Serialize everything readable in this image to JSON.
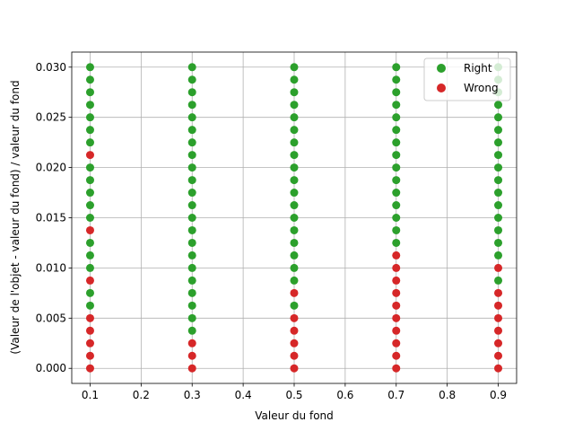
{
  "chart_data": {
    "type": "scatter",
    "xlabel": "Valeur du fond",
    "ylabel": "(Valeur de l'objet - valeur du fond) / valeur du fond",
    "xlim": [
      0.064,
      0.936
    ],
    "ylim": [
      -0.0015,
      0.0315
    ],
    "xticks": [
      "0.1",
      "0.2",
      "0.3",
      "0.4",
      "0.5",
      "0.6",
      "0.7",
      "0.8",
      "0.9"
    ],
    "yticks": [
      "0.000",
      "0.005",
      "0.010",
      "0.015",
      "0.020",
      "0.025",
      "0.030"
    ],
    "grid": true,
    "legend_position": "top-right",
    "colors": {
      "right": "#2ca02c",
      "wrong": "#d62728"
    },
    "series": [
      {
        "name": "Right",
        "points": [
          [
            0.1,
            0.00625
          ],
          [
            0.1,
            0.0075
          ],
          [
            0.1,
            0.01
          ],
          [
            0.1,
            0.01125
          ],
          [
            0.1,
            0.0125
          ],
          [
            0.1,
            0.015
          ],
          [
            0.1,
            0.01625
          ],
          [
            0.1,
            0.0175
          ],
          [
            0.1,
            0.01875
          ],
          [
            0.1,
            0.02
          ],
          [
            0.1,
            0.0225
          ],
          [
            0.1,
            0.02375
          ],
          [
            0.1,
            0.025
          ],
          [
            0.1,
            0.02625
          ],
          [
            0.1,
            0.0275
          ],
          [
            0.1,
            0.02875
          ],
          [
            0.1,
            0.03
          ],
          [
            0.3,
            0.00375
          ],
          [
            0.3,
            0.005
          ],
          [
            0.3,
            0.00625
          ],
          [
            0.3,
            0.0075
          ],
          [
            0.3,
            0.00875
          ],
          [
            0.3,
            0.01
          ],
          [
            0.3,
            0.01125
          ],
          [
            0.3,
            0.0125
          ],
          [
            0.3,
            0.01375
          ],
          [
            0.3,
            0.015
          ],
          [
            0.3,
            0.01625
          ],
          [
            0.3,
            0.0175
          ],
          [
            0.3,
            0.01875
          ],
          [
            0.3,
            0.02
          ],
          [
            0.3,
            0.02125
          ],
          [
            0.3,
            0.0225
          ],
          [
            0.3,
            0.02375
          ],
          [
            0.3,
            0.025
          ],
          [
            0.3,
            0.02625
          ],
          [
            0.3,
            0.0275
          ],
          [
            0.3,
            0.02875
          ],
          [
            0.3,
            0.03
          ],
          [
            0.5,
            0.00625
          ],
          [
            0.5,
            0.00875
          ],
          [
            0.5,
            0.01
          ],
          [
            0.5,
            0.01125
          ],
          [
            0.5,
            0.0125
          ],
          [
            0.5,
            0.01375
          ],
          [
            0.5,
            0.015
          ],
          [
            0.5,
            0.01625
          ],
          [
            0.5,
            0.0175
          ],
          [
            0.5,
            0.01875
          ],
          [
            0.5,
            0.02
          ],
          [
            0.5,
            0.02125
          ],
          [
            0.5,
            0.0225
          ],
          [
            0.5,
            0.02375
          ],
          [
            0.5,
            0.025
          ],
          [
            0.5,
            0.02625
          ],
          [
            0.5,
            0.0275
          ],
          [
            0.5,
            0.02875
          ],
          [
            0.5,
            0.03
          ],
          [
            0.7,
            0.0125
          ],
          [
            0.7,
            0.01375
          ],
          [
            0.7,
            0.015
          ],
          [
            0.7,
            0.01625
          ],
          [
            0.7,
            0.0175
          ],
          [
            0.7,
            0.01875
          ],
          [
            0.7,
            0.02
          ],
          [
            0.7,
            0.02125
          ],
          [
            0.7,
            0.0225
          ],
          [
            0.7,
            0.02375
          ],
          [
            0.7,
            0.025
          ],
          [
            0.7,
            0.02625
          ],
          [
            0.7,
            0.0275
          ],
          [
            0.7,
            0.02875
          ],
          [
            0.7,
            0.03
          ],
          [
            0.9,
            0.00875
          ],
          [
            0.9,
            0.01125
          ],
          [
            0.9,
            0.0125
          ],
          [
            0.9,
            0.01375
          ],
          [
            0.9,
            0.015
          ],
          [
            0.9,
            0.01625
          ],
          [
            0.9,
            0.0175
          ],
          [
            0.9,
            0.01875
          ],
          [
            0.9,
            0.02
          ],
          [
            0.9,
            0.02125
          ],
          [
            0.9,
            0.0225
          ],
          [
            0.9,
            0.02375
          ],
          [
            0.9,
            0.025
          ],
          [
            0.9,
            0.02625
          ],
          [
            0.9,
            0.0275
          ],
          [
            0.9,
            0.02875
          ],
          [
            0.9,
            0.03
          ]
        ]
      },
      {
        "name": "Wrong",
        "points": [
          [
            0.1,
            0.0
          ],
          [
            0.1,
            0.00125
          ],
          [
            0.1,
            0.0025
          ],
          [
            0.1,
            0.00375
          ],
          [
            0.1,
            0.005
          ],
          [
            0.1,
            0.00875
          ],
          [
            0.1,
            0.01375
          ],
          [
            0.1,
            0.02125
          ],
          [
            0.3,
            0.0
          ],
          [
            0.3,
            0.00125
          ],
          [
            0.3,
            0.0025
          ],
          [
            0.5,
            0.0
          ],
          [
            0.5,
            0.00125
          ],
          [
            0.5,
            0.0025
          ],
          [
            0.5,
            0.00375
          ],
          [
            0.5,
            0.005
          ],
          [
            0.5,
            0.0075
          ],
          [
            0.7,
            0.0
          ],
          [
            0.7,
            0.00125
          ],
          [
            0.7,
            0.0025
          ],
          [
            0.7,
            0.00375
          ],
          [
            0.7,
            0.005
          ],
          [
            0.7,
            0.00625
          ],
          [
            0.7,
            0.0075
          ],
          [
            0.7,
            0.00875
          ],
          [
            0.7,
            0.01
          ],
          [
            0.7,
            0.01125
          ],
          [
            0.9,
            0.0
          ],
          [
            0.9,
            0.00125
          ],
          [
            0.9,
            0.0025
          ],
          [
            0.9,
            0.00375
          ],
          [
            0.9,
            0.005
          ],
          [
            0.9,
            0.00625
          ],
          [
            0.9,
            0.0075
          ],
          [
            0.9,
            0.01
          ]
        ]
      }
    ]
  }
}
